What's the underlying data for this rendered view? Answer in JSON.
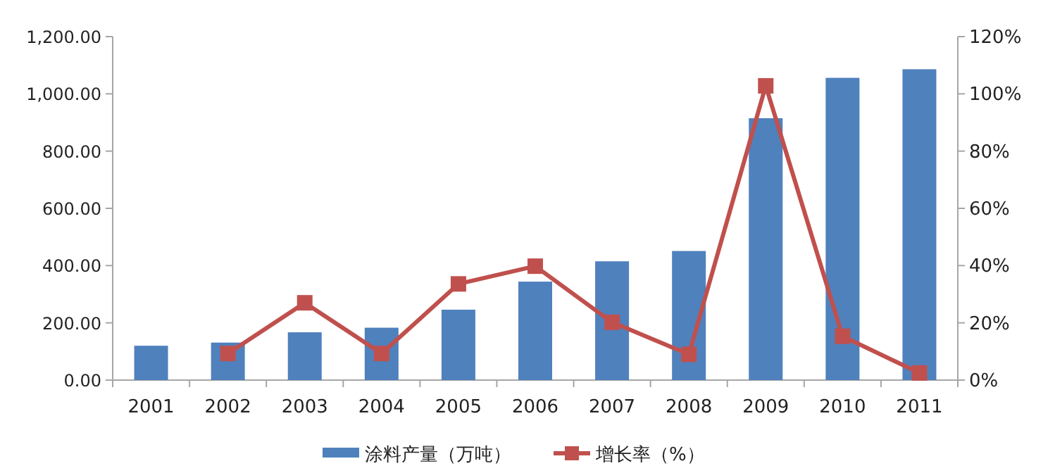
{
  "chart_data": {
    "type": "bar",
    "categories": [
      "2001",
      "2002",
      "2003",
      "2004",
      "2005",
      "2006",
      "2007",
      "2008",
      "2009",
      "2010",
      "2011"
    ],
    "series": [
      {
        "name": "涂料产量（万吨）",
        "color": "#4f81bd",
        "values": [
          120,
          131,
          167,
          183,
          246,
          344,
          415,
          451,
          915,
          1056,
          1086
        ]
      },
      {
        "name": "增长率（%）",
        "type": "line",
        "axis": "y2",
        "color": "#c0504d",
        "marker": "square",
        "values": [
          null,
          9.3,
          27,
          9.3,
          33.6,
          39.8,
          20.2,
          9,
          102.8,
          15.3,
          2.5
        ]
      }
    ],
    "ylim": [
      0,
      1200
    ],
    "yticks": [
      {
        "value": 0,
        "label": "0.00"
      },
      {
        "value": 200,
        "label": "200.00"
      },
      {
        "value": 400,
        "label": "400.00"
      },
      {
        "value": 600,
        "label": "600.00"
      },
      {
        "value": 800,
        "label": "800.00"
      },
      {
        "value": 1000,
        "label": "1,000.00"
      },
      {
        "value": 1200,
        "label": "1,200.00"
      }
    ],
    "y2lim": [
      0,
      120
    ],
    "y2ticks": [
      {
        "value": 0,
        "label": "0%"
      },
      {
        "value": 20,
        "label": "20%"
      },
      {
        "value": 40,
        "label": "40%"
      },
      {
        "value": 60,
        "label": "60%"
      },
      {
        "value": 80,
        "label": "80%"
      },
      {
        "value": 100,
        "label": "100%"
      },
      {
        "value": 120,
        "label": "120%"
      }
    ],
    "legend": "bottom",
    "grid": false
  }
}
